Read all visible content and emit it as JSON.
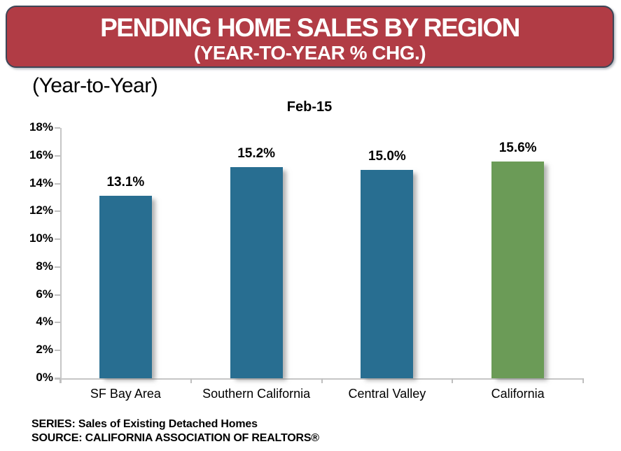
{
  "banner": {
    "title": "PENDING HOME SALES BY REGION",
    "subtitle": "(YEAR-TO-YEAR % CHG.)",
    "bg_color": "#B13C45",
    "border_color": "#3D4656",
    "text_color": "#FFFFFF"
  },
  "subheading": "(Year-to-Year)",
  "chart_data": {
    "type": "bar",
    "title": "Feb-15",
    "categories": [
      "SF Bay Area",
      "Southern California",
      "Central Valley",
      "California"
    ],
    "values": [
      13.1,
      15.2,
      15.0,
      15.6
    ],
    "labels": [
      "13.1%",
      "15.2%",
      "15.0%",
      "15.6%"
    ],
    "bar_colors": [
      "#286E91",
      "#286E91",
      "#286E91",
      "#6B9B57"
    ],
    "xlabel": "",
    "ylabel": "",
    "ylim": [
      0,
      18
    ],
    "ytick_step": 2,
    "ytick_labels": [
      "0%",
      "2%",
      "4%",
      "6%",
      "8%",
      "10%",
      "12%",
      "14%",
      "16%",
      "18%"
    ],
    "grid": false,
    "legend": "none",
    "axis_color": "#C6C6C6"
  },
  "footer": {
    "series": "SERIES: Sales of Existing Detached Homes",
    "source": "SOURCE:  CALIFORNIA ASSOCIATION OF REALTORS®"
  }
}
